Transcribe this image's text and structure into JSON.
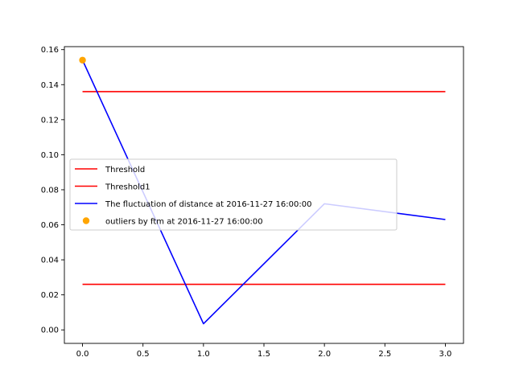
{
  "chart_data": {
    "type": "line",
    "title": "",
    "xlabel": "",
    "ylabel": "",
    "xlim": [
      -0.15,
      3.15
    ],
    "ylim": [
      -0.0077,
      0.1617
    ],
    "xticks": [
      0.0,
      0.5,
      1.0,
      1.5,
      2.0,
      2.5,
      3.0
    ],
    "xtick_labels": [
      "0.0",
      "0.5",
      "1.0",
      "1.5",
      "2.0",
      "2.5",
      "3.0"
    ],
    "yticks": [
      0.0,
      0.02,
      0.04,
      0.06,
      0.08,
      0.1,
      0.12,
      0.14,
      0.16
    ],
    "ytick_labels": [
      "0.00",
      "0.02",
      "0.04",
      "0.06",
      "0.08",
      "0.10",
      "0.12",
      "0.14",
      "0.16"
    ],
    "grid": false,
    "legend_position": "center-left",
    "series": [
      {
        "name": "Threshold",
        "kind": "line",
        "color": "#ff0000",
        "x": [
          0,
          3
        ],
        "y": [
          0.136,
          0.136
        ]
      },
      {
        "name": "Threshold1",
        "kind": "line",
        "color": "#ff0000",
        "x": [
          0,
          3
        ],
        "y": [
          0.026,
          0.026
        ]
      },
      {
        "name": "The fluctuation of distance at 2016-11-27 16:00:00",
        "kind": "line",
        "color": "#0000ff",
        "x": [
          0,
          1,
          2,
          3
        ],
        "y": [
          0.154,
          0.0035,
          0.072,
          0.063
        ]
      },
      {
        "name": "outliers by ftm at 2016-11-27 16:00:00",
        "kind": "scatter",
        "color": "#ffa500",
        "x": [
          0
        ],
        "y": [
          0.154
        ]
      }
    ]
  }
}
